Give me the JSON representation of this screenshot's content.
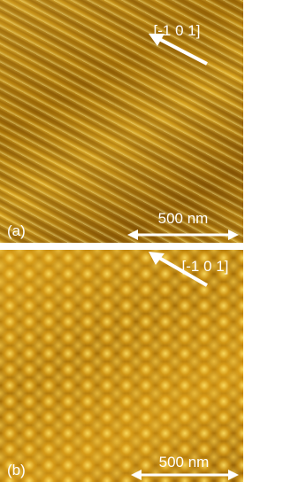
{
  "panels": [
    {
      "label": "(a)",
      "direction": "[-1 0 1]",
      "scale": "500 nm"
    },
    {
      "label": "(b)",
      "direction": "[-1 0 1]",
      "scale": "500 nm"
    }
  ]
}
